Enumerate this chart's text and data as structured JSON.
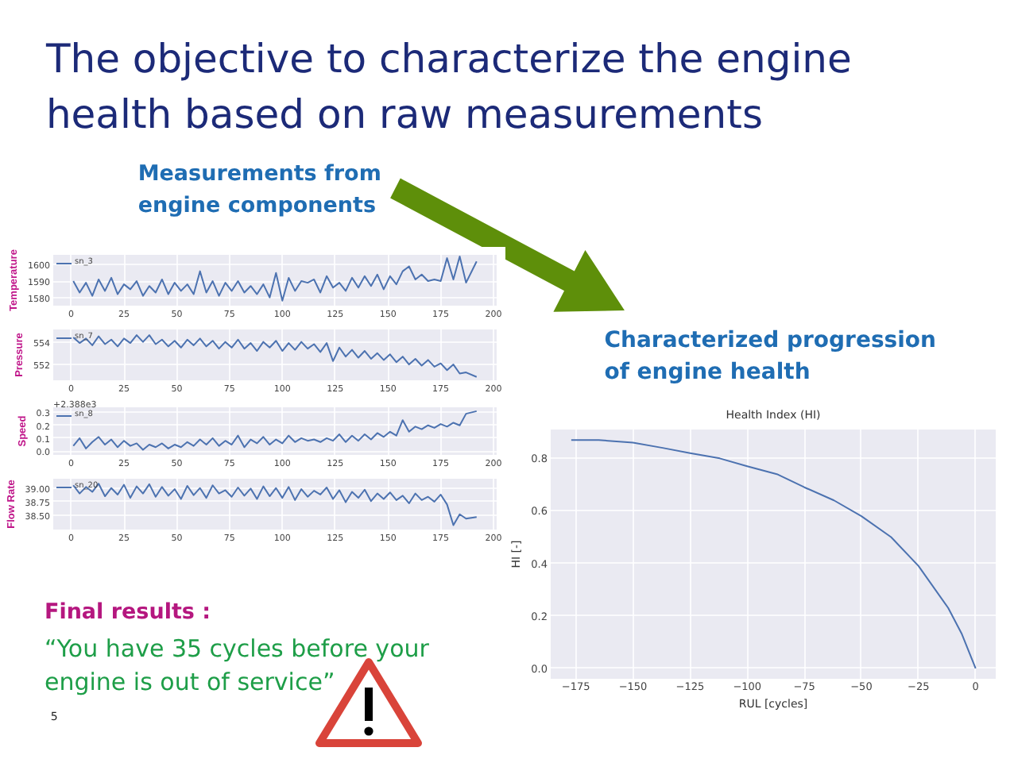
{
  "chart_data": [
    {
      "type": "other",
      "title": "The objective to characterize the engine health based on raw measurements",
      "annotations": [
        "Measurements from engine components",
        "Characterized progression of engine health",
        "Final results :",
        "“You have 35 cycles before your engine is out of service”",
        "5"
      ]
    },
    {
      "type": "line",
      "ylabel": "Temperature",
      "x": [
        1,
        4,
        7,
        10,
        13,
        16,
        19,
        22,
        25,
        28,
        31,
        34,
        37,
        40,
        43,
        46,
        49,
        52,
        55,
        58,
        61,
        64,
        67,
        70,
        73,
        76,
        79,
        82,
        85,
        88,
        91,
        94,
        97,
        100,
        103,
        106,
        109,
        112,
        115,
        118,
        121,
        124,
        127,
        130,
        133,
        136,
        139,
        142,
        145,
        148,
        151,
        154,
        157,
        160,
        163,
        166,
        169,
        172,
        175,
        178,
        181,
        184,
        187,
        192
      ],
      "series": [
        {
          "name": "sn_3",
          "color": "#4c72b0",
          "values": [
            1590,
            1583,
            1589,
            1581,
            1591,
            1584,
            1592,
            1582,
            1588,
            1585,
            1590,
            1581,
            1587,
            1583,
            1591,
            1582,
            1589,
            1584,
            1588,
            1582,
            1596,
            1583,
            1590,
            1581,
            1589,
            1584,
            1590,
            1583,
            1587,
            1582,
            1588,
            1580,
            1595,
            1578,
            1592,
            1584,
            1590,
            1589,
            1591,
            1583,
            1593,
            1586,
            1589,
            1584,
            1592,
            1586,
            1593,
            1587,
            1594,
            1585,
            1593,
            1588,
            1596,
            1599,
            1591,
            1594,
            1590,
            1591,
            1590,
            1604,
            1591,
            1605,
            1589,
            1602
          ]
        }
      ],
      "xlim": [
        -8.5,
        201.5
      ],
      "xticks": [
        0,
        25,
        50,
        75,
        100,
        125,
        150,
        175,
        200
      ],
      "ylim": [
        1575,
        1606
      ],
      "yticks": [
        1580,
        1590,
        1600
      ],
      "grid": true,
      "legend": "top left"
    },
    {
      "type": "line",
      "ylabel": "Pressure",
      "x": [
        1,
        4,
        7,
        10,
        13,
        16,
        19,
        22,
        25,
        28,
        31,
        34,
        37,
        40,
        43,
        46,
        49,
        52,
        55,
        58,
        61,
        64,
        67,
        70,
        73,
        76,
        79,
        82,
        85,
        88,
        91,
        94,
        97,
        100,
        103,
        106,
        109,
        112,
        115,
        118,
        121,
        124,
        127,
        130,
        133,
        136,
        139,
        142,
        145,
        148,
        151,
        154,
        157,
        160,
        163,
        166,
        169,
        172,
        175,
        178,
        181,
        184,
        187,
        192
      ],
      "series": [
        {
          "name": "sn_7",
          "color": "#4c72b0",
          "values": [
            554.4,
            553.9,
            554.3,
            553.7,
            554.5,
            553.8,
            554.2,
            553.6,
            554.3,
            553.9,
            554.6,
            554.0,
            554.6,
            553.8,
            554.2,
            553.6,
            554.1,
            553.5,
            554.2,
            553.7,
            554.3,
            553.6,
            554.1,
            553.4,
            554.0,
            553.5,
            554.2,
            553.4,
            553.9,
            553.2,
            554.0,
            553.5,
            554.1,
            553.2,
            553.9,
            553.3,
            554.0,
            553.4,
            553.8,
            553.1,
            553.9,
            552.3,
            553.5,
            552.7,
            553.3,
            552.6,
            553.2,
            552.5,
            553.0,
            552.4,
            552.9,
            552.2,
            552.7,
            552.0,
            552.5,
            551.9,
            552.4,
            551.8,
            552.1,
            551.5,
            552.0,
            551.2,
            551.3,
            550.9
          ]
        }
      ],
      "xlim": [
        -8.5,
        201.5
      ],
      "xticks": [
        0,
        25,
        50,
        75,
        100,
        125,
        150,
        175,
        200
      ],
      "ylim": [
        550.6,
        555.1
      ],
      "yticks": [
        552,
        554
      ],
      "grid": true,
      "legend": "top left"
    },
    {
      "type": "line",
      "ylabel": "Speed",
      "annotations": [
        "+2.388e3"
      ],
      "x": [
        1,
        4,
        7,
        10,
        13,
        16,
        19,
        22,
        25,
        28,
        31,
        34,
        37,
        40,
        43,
        46,
        49,
        52,
        55,
        58,
        61,
        64,
        67,
        70,
        73,
        76,
        79,
        82,
        85,
        88,
        91,
        94,
        97,
        100,
        103,
        106,
        109,
        112,
        115,
        118,
        121,
        124,
        127,
        130,
        133,
        136,
        139,
        142,
        145,
        148,
        151,
        154,
        157,
        160,
        163,
        166,
        169,
        172,
        175,
        178,
        181,
        184,
        187,
        192
      ],
      "series": [
        {
          "name": "sn_8",
          "color": "#4c72b0",
          "values": [
            0.04,
            0.1,
            0.02,
            0.07,
            0.11,
            0.05,
            0.09,
            0.03,
            0.08,
            0.04,
            0.06,
            0.01,
            0.05,
            0.03,
            0.06,
            0.02,
            0.05,
            0.03,
            0.07,
            0.04,
            0.09,
            0.05,
            0.1,
            0.04,
            0.08,
            0.05,
            0.12,
            0.03,
            0.09,
            0.06,
            0.11,
            0.05,
            0.09,
            0.06,
            0.12,
            0.07,
            0.1,
            0.08,
            0.09,
            0.07,
            0.1,
            0.08,
            0.13,
            0.07,
            0.12,
            0.08,
            0.13,
            0.09,
            0.14,
            0.11,
            0.15,
            0.12,
            0.24,
            0.15,
            0.19,
            0.17,
            0.2,
            0.18,
            0.21,
            0.19,
            0.22,
            0.2,
            0.29,
            0.31
          ]
        }
      ],
      "xlim": [
        -8.5,
        201.5
      ],
      "xticks": [
        0,
        25,
        50,
        75,
        100,
        125,
        150,
        175,
        200
      ],
      "ylim": [
        -0.03,
        0.34
      ],
      "yticks": [
        {
          "value": 0,
          "label": "0.0"
        },
        0.1,
        0.2,
        0.3
      ],
      "grid": true,
      "legend": "top left"
    },
    {
      "type": "line",
      "ylabel": "Flow Rate",
      "x": [
        1,
        4,
        7,
        10,
        13,
        16,
        19,
        22,
        25,
        28,
        31,
        34,
        37,
        40,
        43,
        46,
        49,
        52,
        55,
        58,
        61,
        64,
        67,
        70,
        73,
        76,
        79,
        82,
        85,
        88,
        91,
        94,
        97,
        100,
        103,
        106,
        109,
        112,
        115,
        118,
        121,
        124,
        127,
        130,
        133,
        136,
        139,
        142,
        145,
        148,
        151,
        154,
        157,
        160,
        163,
        166,
        169,
        172,
        175,
        178,
        181,
        184,
        187,
        192
      ],
      "series": [
        {
          "name": "sn_20",
          "color": "#4c72b0",
          "values": [
            39.05,
            38.9,
            39.02,
            38.93,
            39.08,
            38.85,
            39.0,
            38.88,
            39.06,
            38.82,
            39.03,
            38.9,
            39.07,
            38.84,
            39.02,
            38.86,
            38.98,
            38.8,
            39.04,
            38.87,
            39.0,
            38.82,
            39.05,
            38.9,
            38.96,
            38.84,
            39.01,
            38.86,
            38.99,
            38.8,
            39.03,
            38.85,
            39.0,
            38.82,
            39.02,
            38.78,
            38.98,
            38.84,
            38.95,
            38.88,
            39.01,
            38.8,
            38.96,
            38.74,
            38.93,
            38.82,
            38.97,
            38.76,
            38.9,
            38.8,
            38.92,
            38.78,
            38.86,
            38.72,
            38.9,
            38.78,
            38.84,
            38.75,
            38.88,
            38.7,
            38.32,
            38.52,
            38.44,
            38.47
          ]
        }
      ],
      "xlim": [
        -8.5,
        201.5
      ],
      "xticks": [
        0,
        25,
        50,
        75,
        100,
        125,
        150,
        175,
        200
      ],
      "ylim": [
        38.24,
        39.17
      ],
      "yticks": [
        {
          "value": 38.5,
          "label": "38.50"
        },
        {
          "value": 38.75,
          "label": "38.75"
        },
        {
          "value": 39.0,
          "label": "39.00"
        }
      ],
      "grid": true,
      "legend": "top left"
    },
    {
      "type": "line",
      "title": "Health Index (HI)",
      "xlabel": "RUL [cycles]",
      "ylabel": "HI [-]",
      "x": [
        -177,
        -165,
        -150,
        -137,
        -125,
        -112,
        -100,
        -87,
        -75,
        -62,
        -50,
        -37,
        -25,
        -12,
        -6,
        0
      ],
      "series": [
        {
          "color": "#4c72b0",
          "values": [
            0.87,
            0.87,
            0.86,
            0.84,
            0.82,
            0.8,
            0.77,
            0.74,
            0.69,
            0.64,
            0.58,
            0.5,
            0.39,
            0.23,
            0.13,
            0.0
          ]
        }
      ],
      "xlim": [
        -186,
        8.8
      ],
      "xticks": [
        {
          "value": -175,
          "label": "−175"
        },
        {
          "value": -150,
          "label": "−150"
        },
        {
          "value": -125,
          "label": "−125"
        },
        {
          "value": -100,
          "label": "−100"
        },
        {
          "value": -75,
          "label": "−75"
        },
        {
          "value": -50,
          "label": "−50"
        },
        {
          "value": -25,
          "label": "−25"
        },
        0
      ],
      "ylim": [
        -0.04,
        0.91
      ],
      "yticks": [
        {
          "value": 0,
          "label": "0.0"
        },
        0.2,
        0.4,
        0.6,
        0.8
      ],
      "grid": true
    }
  ]
}
